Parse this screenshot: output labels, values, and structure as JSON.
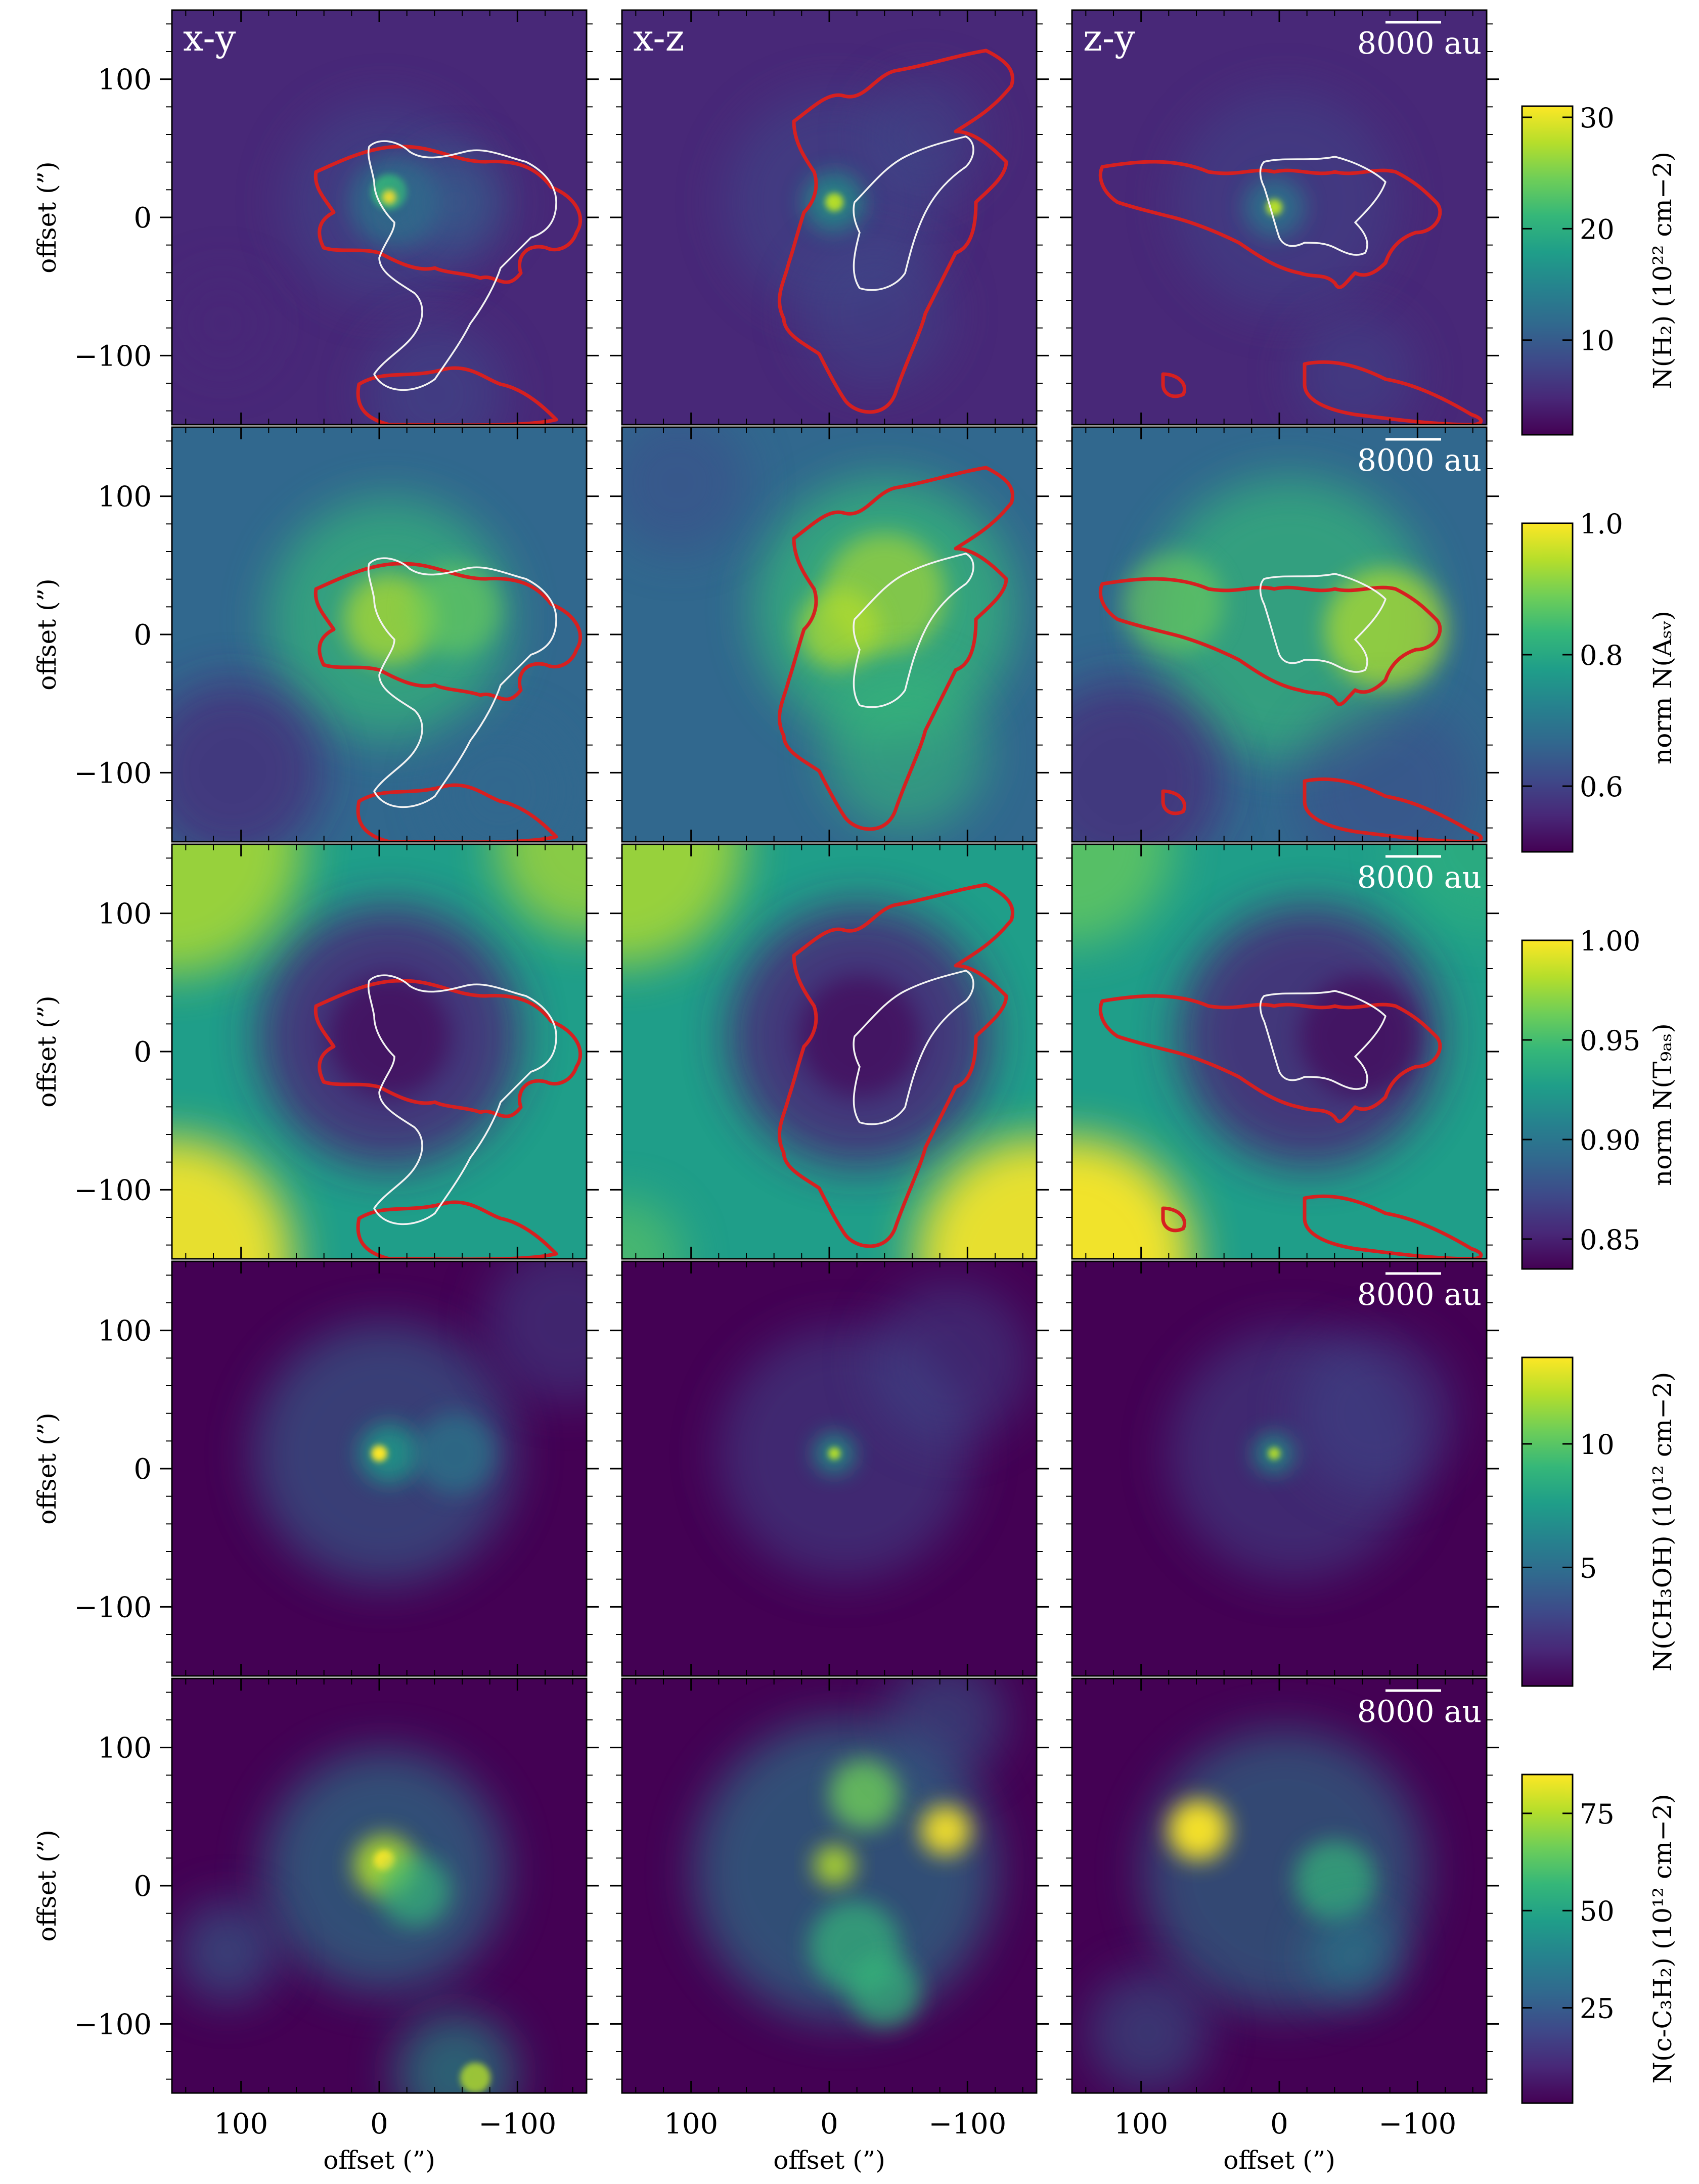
{
  "figure": {
    "panel_titles": [
      "x-y",
      "x-z",
      "z-y"
    ],
    "scalebar_label": "8000 au",
    "x_axis_label": "offset (”)",
    "y_axis_label": "offset (”)",
    "x_tick_labels": [
      "100",
      "0",
      "−100"
    ],
    "y_tick_labels": [
      "100",
      "0",
      "−100"
    ]
  },
  "colors": {
    "colormap": [
      "#440154",
      "#482878",
      "#3e4989",
      "#31688e",
      "#26828e",
      "#1f9e89",
      "#35b779",
      "#6ece58",
      "#b5de2b",
      "#fde725"
    ],
    "red_contour": "#d62020",
    "white_contour": "#f2f2f2",
    "scalebar": "#ffffff"
  },
  "chart_data": [
    {
      "type": "heatmap",
      "title": "",
      "quantity": "N(H2)",
      "colorbar_label": "N(H₂) (10²² cm−2)",
      "colorbar_ticks": [
        "30",
        "20",
        "10"
      ],
      "colorbar_range": [
        1.5,
        31
      ],
      "projections": [
        "x-y",
        "x-z",
        "z-y"
      ],
      "xlim": [
        150,
        -150
      ],
      "ylim": [
        -150,
        150
      ],
      "xticks": [
        100,
        0,
        -100
      ],
      "yticks": [
        100,
        0,
        -100
      ],
      "contours": {
        "red": true,
        "white": true
      },
      "scalebar": "8000 au"
    },
    {
      "type": "heatmap",
      "title": "",
      "quantity": "norm N(A_SV)",
      "colorbar_label": "norm N(Aₛᵥ)",
      "colorbar_ticks": [
        "1.0",
        "0.8",
        "0.6"
      ],
      "colorbar_range": [
        0.5,
        1.0
      ],
      "projections": [
        "x-y",
        "x-z",
        "z-y"
      ],
      "xlim": [
        150,
        -150
      ],
      "ylim": [
        -150,
        150
      ],
      "xticks": [
        100,
        0,
        -100
      ],
      "yticks": [
        100,
        0,
        -100
      ],
      "contours": {
        "red": true,
        "white": true
      },
      "scalebar": "8000 au"
    },
    {
      "type": "heatmap",
      "title": "",
      "quantity": "norm N(T_gas)",
      "colorbar_label": "norm N(T₉ₐₛ)",
      "colorbar_ticks": [
        "1.00",
        "0.95",
        "0.90",
        "0.85"
      ],
      "colorbar_range": [
        0.835,
        1.0
      ],
      "projections": [
        "x-y",
        "x-z",
        "z-y"
      ],
      "xlim": [
        150,
        -150
      ],
      "ylim": [
        -150,
        150
      ],
      "xticks": [
        100,
        0,
        -100
      ],
      "yticks": [
        100,
        0,
        -100
      ],
      "contours": {
        "red": true,
        "white": true
      },
      "scalebar": "8000 au"
    },
    {
      "type": "heatmap",
      "title": "",
      "quantity": "N(CH3OH)",
      "colorbar_label": "N(CH₃OH) (10¹² cm−2)",
      "colorbar_ticks": [
        "10",
        "5"
      ],
      "colorbar_range": [
        0.2,
        13.5
      ],
      "projections": [
        "x-y",
        "x-z",
        "z-y"
      ],
      "xlim": [
        150,
        -150
      ],
      "ylim": [
        -150,
        150
      ],
      "xticks": [
        100,
        0,
        -100
      ],
      "yticks": [
        100,
        0,
        -100
      ],
      "contours": {
        "red": false,
        "white": false
      },
      "scalebar": "8000 au"
    },
    {
      "type": "heatmap",
      "title": "",
      "quantity": "N(c-C3H2)",
      "colorbar_label": "N(c-C₃H₂) (10¹² cm−2)",
      "colorbar_ticks": [
        "75",
        "50",
        "25"
      ],
      "colorbar_range": [
        0.5,
        85
      ],
      "projections": [
        "x-y",
        "x-z",
        "z-y"
      ],
      "xlim": [
        150,
        -150
      ],
      "ylim": [
        -150,
        150
      ],
      "xticks": [
        100,
        0,
        -100
      ],
      "yticks": [
        100,
        0,
        -100
      ],
      "contours": {
        "red": false,
        "white": false
      },
      "scalebar": "8000 au"
    }
  ]
}
